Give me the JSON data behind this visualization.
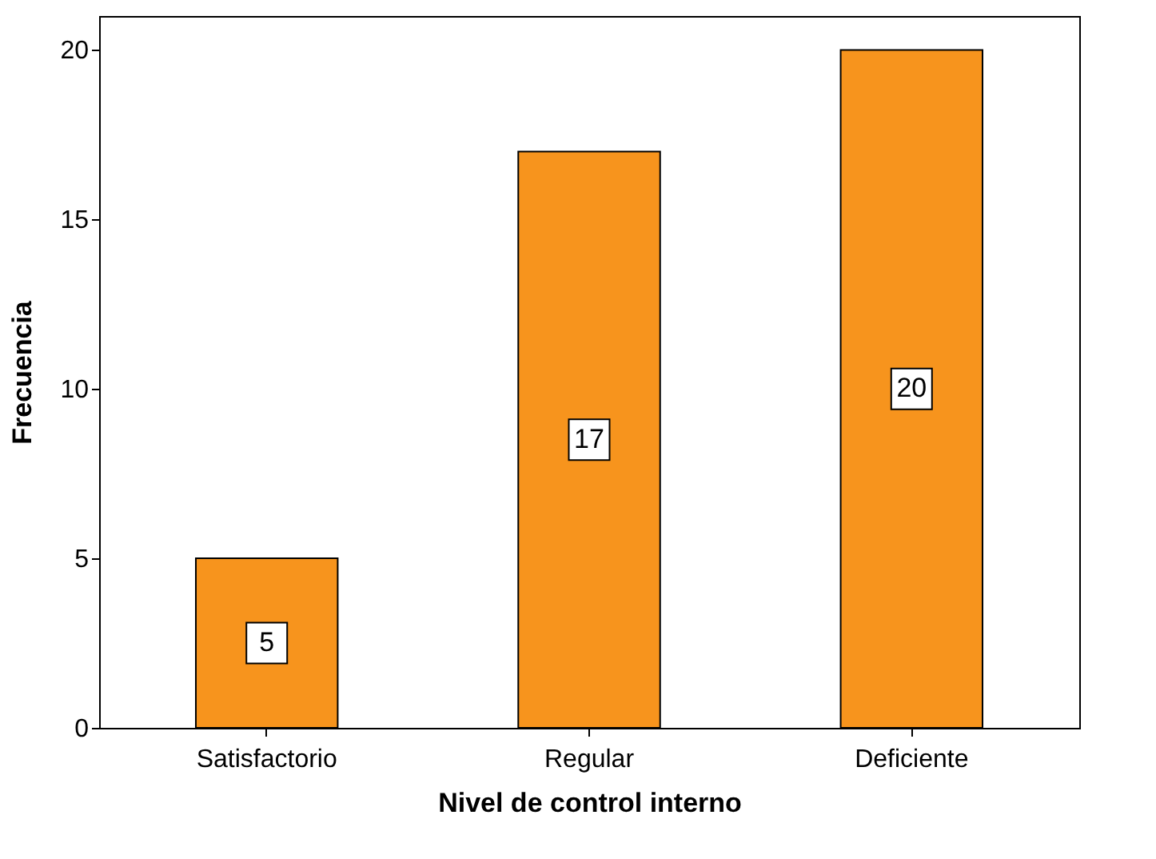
{
  "chart_data": {
    "type": "bar",
    "xlabel": "Nivel de control interno",
    "ylabel": "Frecuencia",
    "categories": [
      "Satisfactorio",
      "Regular",
      "Deficiente"
    ],
    "values": [
      5,
      17,
      20
    ],
    "color": "#f7941d",
    "ylim": [
      0,
      21
    ],
    "yticks": [
      0,
      5,
      10,
      15,
      20
    ],
    "grid": false,
    "data_labels": true
  }
}
